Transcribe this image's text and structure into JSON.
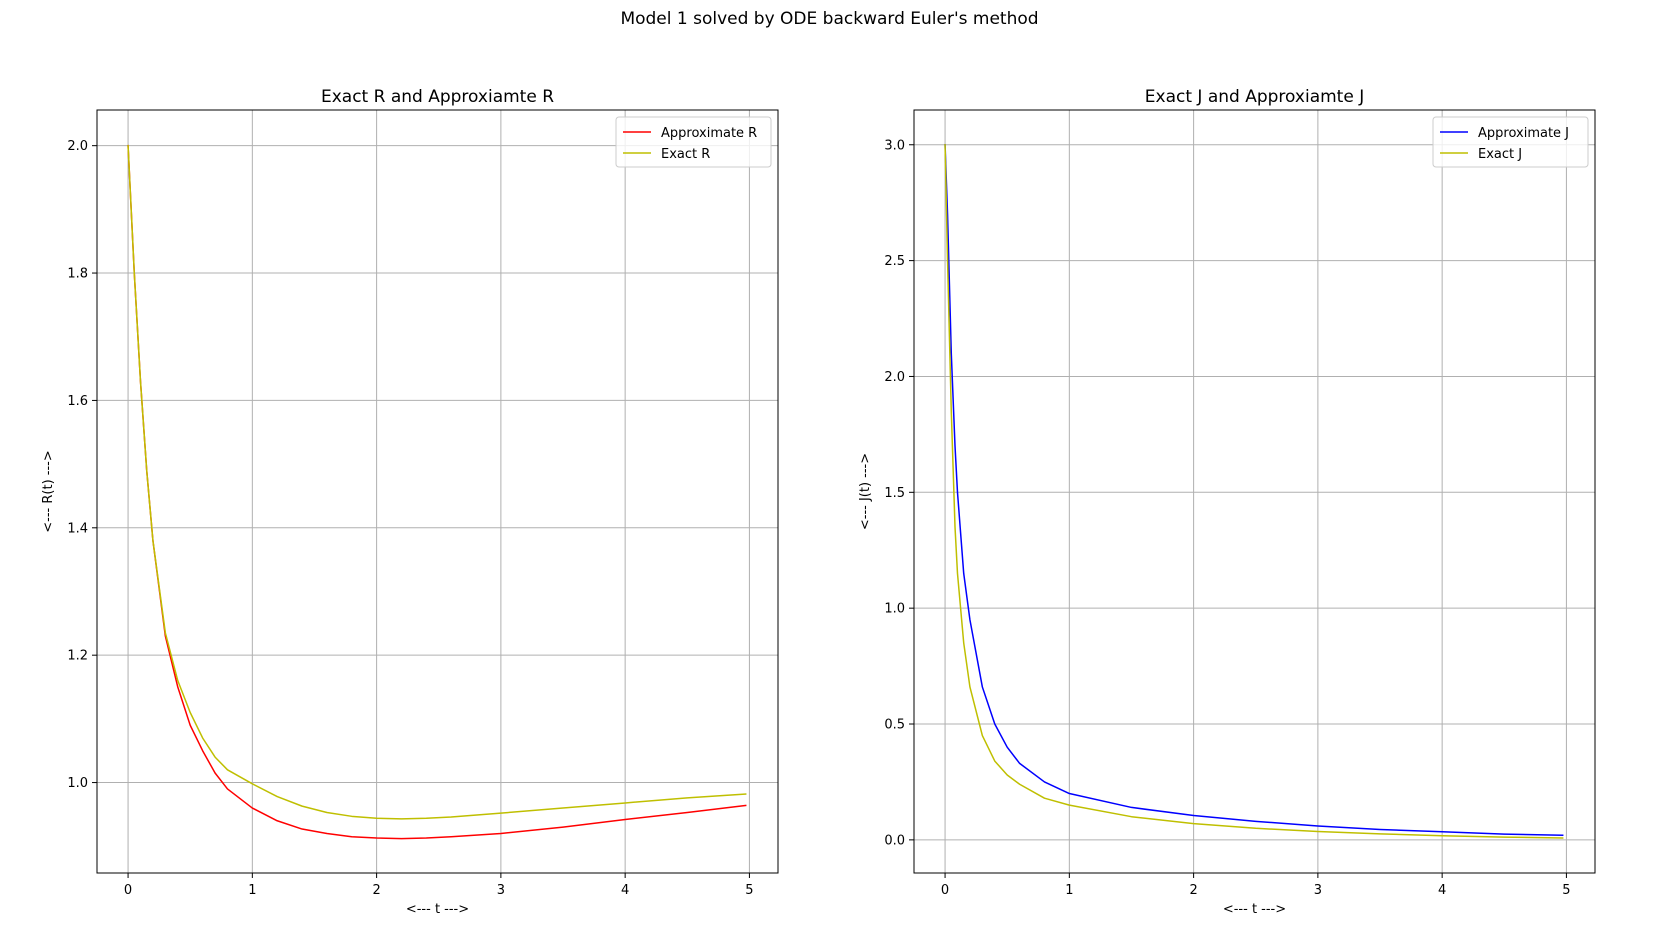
{
  "figure": {
    "suptitle": "Model 1 solved by ODE backward Euler's method"
  },
  "chart_data": [
    {
      "type": "line",
      "title": "Exact R and Approxiamte R",
      "xlabel": "<--- t --->",
      "ylabel": "<--- R(t) --->",
      "xlim": [
        -0.25,
        5.23
      ],
      "ylim": [
        0.858,
        2.056
      ],
      "xticks": [
        0,
        1,
        2,
        3,
        4,
        5
      ],
      "yticks": [
        1.0,
        1.2,
        1.4,
        1.6,
        1.8,
        2.0
      ],
      "ytick_decimals": 1,
      "grid": true,
      "legend_position": "top-right",
      "series": [
        {
          "name": "Approximate R",
          "color": "#ff0000",
          "x": [
            0,
            0.05,
            0.1,
            0.15,
            0.2,
            0.3,
            0.4,
            0.5,
            0.6,
            0.7,
            0.8,
            1.0,
            1.2,
            1.4,
            1.6,
            1.8,
            2.0,
            2.2,
            2.4,
            2.6,
            3.0,
            3.5,
            4.0,
            4.5,
            4.97
          ],
          "values": [
            2.0,
            1.8,
            1.63,
            1.49,
            1.38,
            1.23,
            1.15,
            1.09,
            1.05,
            1.015,
            0.99,
            0.96,
            0.94,
            0.927,
            0.92,
            0.915,
            0.913,
            0.912,
            0.913,
            0.915,
            0.92,
            0.93,
            0.942,
            0.953,
            0.964
          ]
        },
        {
          "name": "Exact R",
          "color": "#bfbf00",
          "x": [
            0,
            0.05,
            0.1,
            0.15,
            0.2,
            0.3,
            0.4,
            0.5,
            0.6,
            0.7,
            0.8,
            1.0,
            1.2,
            1.4,
            1.6,
            1.8,
            2.0,
            2.2,
            2.4,
            2.6,
            3.0,
            3.5,
            4.0,
            4.5,
            4.97
          ],
          "values": [
            2.0,
            1.8,
            1.63,
            1.49,
            1.38,
            1.235,
            1.16,
            1.11,
            1.07,
            1.04,
            1.02,
            0.998,
            0.978,
            0.963,
            0.953,
            0.947,
            0.944,
            0.943,
            0.944,
            0.946,
            0.952,
            0.96,
            0.968,
            0.976,
            0.982
          ]
        }
      ]
    },
    {
      "type": "line",
      "title": "Exact J and Approxiamte J",
      "xlabel": "<--- t --->",
      "ylabel": "<--- J(t) --->",
      "xlim": [
        -0.25,
        5.23
      ],
      "ylim": [
        -0.143,
        3.15
      ],
      "xticks": [
        0,
        1,
        2,
        3,
        4,
        5
      ],
      "yticks": [
        0.0,
        0.5,
        1.0,
        1.5,
        2.0,
        2.5,
        3.0
      ],
      "ytick_decimals": 1,
      "grid": true,
      "legend_position": "top-right",
      "series": [
        {
          "name": "Approximate J",
          "color": "#0000ff",
          "x": [
            0,
            0.02,
            0.05,
            0.08,
            0.1,
            0.15,
            0.2,
            0.3,
            0.4,
            0.5,
            0.6,
            0.8,
            1.0,
            1.5,
            2.0,
            2.5,
            3.0,
            3.5,
            4.0,
            4.5,
            4.97
          ],
          "values": [
            3.0,
            2.7,
            2.1,
            1.7,
            1.5,
            1.15,
            0.95,
            0.66,
            0.5,
            0.4,
            0.33,
            0.25,
            0.2,
            0.14,
            0.105,
            0.08,
            0.06,
            0.045,
            0.035,
            0.025,
            0.02
          ]
        },
        {
          "name": "Exact J",
          "color": "#bfbf00",
          "x": [
            0,
            0.02,
            0.05,
            0.08,
            0.1,
            0.15,
            0.2,
            0.3,
            0.4,
            0.5,
            0.6,
            0.8,
            1.0,
            1.5,
            2.0,
            2.5,
            3.0,
            3.5,
            4.0,
            4.5,
            4.97
          ],
          "values": [
            3.0,
            2.5,
            1.85,
            1.35,
            1.15,
            0.85,
            0.66,
            0.45,
            0.34,
            0.28,
            0.24,
            0.18,
            0.15,
            0.1,
            0.07,
            0.05,
            0.036,
            0.026,
            0.018,
            0.012,
            0.008
          ]
        }
      ]
    }
  ]
}
